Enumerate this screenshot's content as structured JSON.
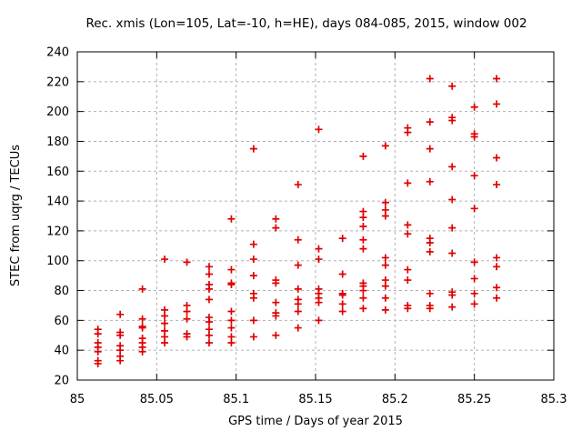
{
  "style": {
    "background": "#ffffff",
    "frame_color": "#000000",
    "grid_color": "#b0b0b0",
    "marker_color": "#e00000",
    "text_color": "#000000"
  },
  "chart_data": {
    "type": "scatter",
    "title": "Rec. xmis (Lon=105, Lat=-10, h=HE), days 084-085, 2015, window 002",
    "xlabel": "GPS time / Days of year 2015",
    "ylabel": "STEC from uqrg / TECUs",
    "xlim": [
      85,
      85.3
    ],
    "ylim": [
      20,
      240
    ],
    "grid": true,
    "legend_position": "none",
    "marker": "plus",
    "xtick_values": [
      85,
      85.05,
      85.1,
      85.15,
      85.2,
      85.25,
      85.3
    ],
    "xtick_labels": [
      "85",
      "85.05",
      "85.1",
      "85.15",
      "85.2",
      "85.25",
      "85.3"
    ],
    "ytick_values": [
      20,
      40,
      60,
      80,
      100,
      120,
      140,
      160,
      180,
      200,
      220,
      240
    ],
    "ytick_labels": [
      "20",
      "40",
      "60",
      "80",
      "100",
      "120",
      "140",
      "160",
      "180",
      "200",
      "220",
      "240"
    ],
    "series": [
      {
        "name": "STEC",
        "points": [
          [
            85.013,
            54
          ],
          [
            85.013,
            51
          ],
          [
            85.013,
            45
          ],
          [
            85.013,
            42
          ],
          [
            85.013,
            39
          ],
          [
            85.013,
            33
          ],
          [
            85.013,
            31
          ],
          [
            85.027,
            64
          ],
          [
            85.027,
            52
          ],
          [
            85.027,
            50
          ],
          [
            85.027,
            43
          ],
          [
            85.027,
            40
          ],
          [
            85.027,
            36
          ],
          [
            85.027,
            33
          ],
          [
            85.041,
            81
          ],
          [
            85.041,
            61
          ],
          [
            85.041,
            56
          ],
          [
            85.041,
            55
          ],
          [
            85.041,
            48
          ],
          [
            85.041,
            45
          ],
          [
            85.041,
            42
          ],
          [
            85.041,
            39
          ],
          [
            85.055,
            101
          ],
          [
            85.055,
            67
          ],
          [
            85.055,
            63
          ],
          [
            85.055,
            58
          ],
          [
            85.055,
            53
          ],
          [
            85.055,
            49
          ],
          [
            85.055,
            45
          ],
          [
            85.069,
            99
          ],
          [
            85.069,
            70
          ],
          [
            85.069,
            66
          ],
          [
            85.069,
            61
          ],
          [
            85.069,
            51
          ],
          [
            85.069,
            49
          ],
          [
            85.083,
            96
          ],
          [
            85.083,
            91
          ],
          [
            85.083,
            84
          ],
          [
            85.083,
            81
          ],
          [
            85.083,
            74
          ],
          [
            85.083,
            62
          ],
          [
            85.083,
            59
          ],
          [
            85.083,
            54
          ],
          [
            85.083,
            50
          ],
          [
            85.083,
            45
          ],
          [
            85.097,
            128
          ],
          [
            85.097,
            94
          ],
          [
            85.097,
            85
          ],
          [
            85.097,
            84
          ],
          [
            85.097,
            66
          ],
          [
            85.097,
            60
          ],
          [
            85.097,
            55
          ],
          [
            85.097,
            49
          ],
          [
            85.097,
            45
          ],
          [
            85.111,
            175
          ],
          [
            85.111,
            111
          ],
          [
            85.111,
            101
          ],
          [
            85.111,
            90
          ],
          [
            85.111,
            78
          ],
          [
            85.111,
            75
          ],
          [
            85.111,
            60
          ],
          [
            85.111,
            49
          ],
          [
            85.125,
            128
          ],
          [
            85.125,
            122
          ],
          [
            85.125,
            87
          ],
          [
            85.125,
            85
          ],
          [
            85.125,
            72
          ],
          [
            85.125,
            65
          ],
          [
            85.125,
            63
          ],
          [
            85.125,
            50
          ],
          [
            85.139,
            151
          ],
          [
            85.139,
            114
          ],
          [
            85.139,
            97
          ],
          [
            85.139,
            81
          ],
          [
            85.139,
            74
          ],
          [
            85.139,
            71
          ],
          [
            85.139,
            66
          ],
          [
            85.139,
            55
          ],
          [
            85.152,
            188
          ],
          [
            85.152,
            108
          ],
          [
            85.152,
            101
          ],
          [
            85.152,
            81
          ],
          [
            85.152,
            78
          ],
          [
            85.152,
            75
          ],
          [
            85.152,
            72
          ],
          [
            85.152,
            60
          ],
          [
            85.167,
            115
          ],
          [
            85.167,
            91
          ],
          [
            85.167,
            78
          ],
          [
            85.167,
            77
          ],
          [
            85.167,
            71
          ],
          [
            85.167,
            66
          ],
          [
            85.18,
            170
          ],
          [
            85.18,
            133
          ],
          [
            85.18,
            129
          ],
          [
            85.18,
            123
          ],
          [
            85.18,
            114
          ],
          [
            85.18,
            108
          ],
          [
            85.18,
            85
          ],
          [
            85.18,
            83
          ],
          [
            85.18,
            80
          ],
          [
            85.18,
            75
          ],
          [
            85.18,
            68
          ],
          [
            85.194,
            177
          ],
          [
            85.194,
            139
          ],
          [
            85.194,
            134
          ],
          [
            85.194,
            130
          ],
          [
            85.194,
            102
          ],
          [
            85.194,
            97
          ],
          [
            85.194,
            87
          ],
          [
            85.194,
            83
          ],
          [
            85.194,
            75
          ],
          [
            85.194,
            67
          ],
          [
            85.208,
            189
          ],
          [
            85.208,
            186
          ],
          [
            85.208,
            152
          ],
          [
            85.208,
            124
          ],
          [
            85.208,
            118
          ],
          [
            85.208,
            94
          ],
          [
            85.208,
            87
          ],
          [
            85.208,
            70
          ],
          [
            85.208,
            68
          ],
          [
            85.222,
            222
          ],
          [
            85.222,
            193
          ],
          [
            85.222,
            175
          ],
          [
            85.222,
            153
          ],
          [
            85.222,
            115
          ],
          [
            85.222,
            112
          ],
          [
            85.222,
            106
          ],
          [
            85.222,
            78
          ],
          [
            85.222,
            70
          ],
          [
            85.222,
            68
          ],
          [
            85.236,
            217
          ],
          [
            85.236,
            196
          ],
          [
            85.236,
            194
          ],
          [
            85.236,
            163
          ],
          [
            85.236,
            141
          ],
          [
            85.236,
            122
          ],
          [
            85.236,
            105
          ],
          [
            85.236,
            79
          ],
          [
            85.236,
            77
          ],
          [
            85.236,
            69
          ],
          [
            85.25,
            203
          ],
          [
            85.25,
            185
          ],
          [
            85.25,
            183
          ],
          [
            85.25,
            157
          ],
          [
            85.25,
            135
          ],
          [
            85.25,
            99
          ],
          [
            85.25,
            88
          ],
          [
            85.25,
            78
          ],
          [
            85.25,
            71
          ],
          [
            85.264,
            222
          ],
          [
            85.264,
            205
          ],
          [
            85.264,
            169
          ],
          [
            85.264,
            151
          ],
          [
            85.264,
            102
          ],
          [
            85.264,
            96
          ],
          [
            85.264,
            82
          ],
          [
            85.264,
            75
          ]
        ]
      }
    ]
  }
}
